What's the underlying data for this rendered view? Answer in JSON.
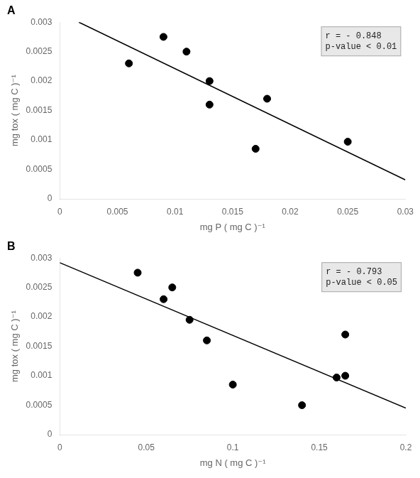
{
  "chart_data": [
    {
      "type": "scatter",
      "title": "A",
      "x_label": "mg P ( mg C )⁻¹",
      "y_label": "mg tox ( mg C )⁻¹",
      "annotation": "r = - 0.848\np-value < 0.01",
      "series": [
        {
          "type": "scatter",
          "marker": "circle",
          "color": "#000000",
          "x": [
            0.006,
            0.009,
            0.011,
            0.013,
            0.013,
            0.017,
            0.018,
            0.025
          ],
          "values": [
            0.0023,
            0.00275,
            0.0025,
            0.002,
            0.0016,
            0.00085,
            0.0017,
            0.00097
          ]
        },
        {
          "type": "line",
          "line_style": "solid",
          "color": "#000000",
          "x": [
            0.0016497,
            0.03
          ],
          "values": [
            0.003,
            0.000322856
          ]
        }
      ],
      "xlim": [
        0,
        0.03
      ],
      "ylim": [
        0,
        0.003
      ],
      "xticks": [
        0,
        0.005,
        0.01,
        0.015,
        0.02,
        0.025,
        0.03
      ],
      "yticks": [
        0,
        0.0005,
        0.001,
        0.0015,
        0.002,
        0.0025,
        0.003
      ],
      "grid": false
    },
    {
      "type": "scatter",
      "title": "B",
      "x_label": "mg N ( mg C )⁻¹",
      "y_label": "mg tox ( mg C )⁻¹",
      "annotation": "r = - 0.793\np-value < 0.05",
      "series": [
        {
          "type": "scatter",
          "marker": "circle",
          "color": "#000000",
          "x": [
            0.045,
            0.06,
            0.065,
            0.075,
            0.085,
            0.1,
            0.14,
            0.16,
            0.165,
            0.165
          ],
          "values": [
            0.00275,
            0.0023,
            0.0025,
            0.00195,
            0.0016,
            0.00085,
            0.0005,
            0.00097,
            0.001,
            0.0017
          ]
        },
        {
          "type": "line",
          "line_style": "solid",
          "color": "#000000",
          "x": [
            0,
            0.2
          ],
          "values": [
            0.0029192132,
            0.0004527732
          ]
        }
      ],
      "xlim": [
        0,
        0.2
      ],
      "ylim": [
        0,
        0.003
      ],
      "xticks": [
        0,
        0.05,
        0.1,
        0.15,
        0.2
      ],
      "yticks": [
        0,
        0.0005,
        0.001,
        0.0015,
        0.002,
        0.0025,
        0.003
      ],
      "grid": false
    }
  ]
}
